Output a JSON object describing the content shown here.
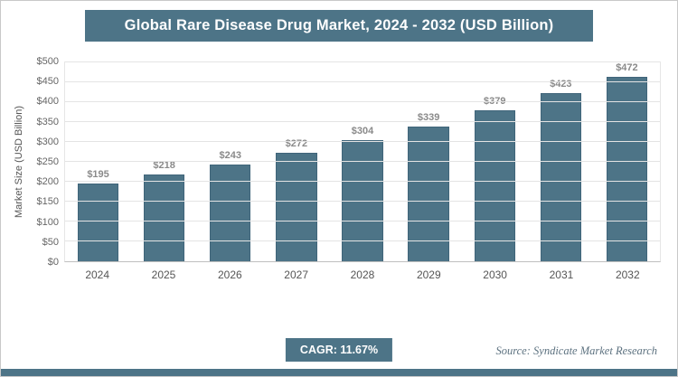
{
  "title": "Global Rare Disease Drug Market, 2024 - 2032 (USD Billion)",
  "chart_data": {
    "type": "bar",
    "title": "Global Rare Disease Drug Market, 2024 - 2032 (USD Billion)",
    "categories": [
      "2024",
      "2025",
      "2026",
      "2027",
      "2028",
      "2029",
      "2030",
      "2031",
      "2032"
    ],
    "values": [
      195,
      218,
      243,
      272,
      304,
      339,
      379,
      423,
      472
    ],
    "value_labels": [
      "$195",
      "$218",
      "$243",
      "$272",
      "$304",
      "$339",
      "$379",
      "$423",
      "$472"
    ],
    "xlabel": "",
    "ylabel": "Market Size (USD Billion)",
    "ylim": [
      0,
      500
    ],
    "ytick_step": 50,
    "ytick_prefix": "$",
    "grid": true,
    "legend": "none",
    "bar_color": "#4d7487"
  },
  "footer": {
    "cagr_label": "CAGR: 11.67%",
    "source": "Source: Syndicate Market Research"
  },
  "colors": {
    "accent": "#4d7487",
    "header_bg": "#4d7487",
    "value_label_color": "#8a8a8a",
    "gridline_color": "#e4e4e4"
  }
}
